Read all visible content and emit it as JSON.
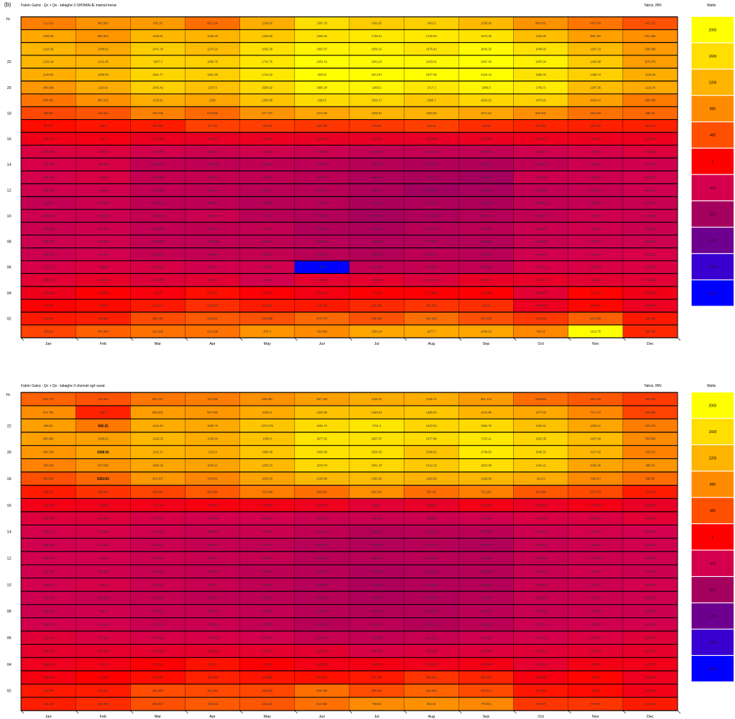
{
  "figure_label": "(b)",
  "months": [
    "Jan",
    "Feb",
    "Mar",
    "Apr",
    "May",
    "Jun",
    "Jul",
    "Aug",
    "Sep",
    "Oct",
    "Nov",
    "Dec"
  ],
  "hour_ticks": [
    "02",
    "04",
    "06",
    "08",
    "10",
    "12",
    "14",
    "16",
    "18",
    "20",
    "22"
  ],
  "legend": {
    "title": "Watts",
    "levels": [
      "2000",
      "1600",
      "1200",
      "800",
      "400",
      "0",
      "-400",
      "-800",
      "-1200",
      "-1600",
      "-2000"
    ],
    "colors": [
      "#ffff00",
      "#ffde00",
      "#ffb400",
      "#ff8c00",
      "#ff5000",
      "#ff0000",
      "#d4004d",
      "#a4005e",
      "#6e0090",
      "#3a00d0",
      "#0000ff"
    ]
  },
  "chart_data": [
    {
      "type": "heatmap",
      "title": "Fabric Gains - Qc + Qs - tabaghe 3 SHOMALIE mamuli kenar",
      "location": "Tabriz, IRN",
      "ylabel": "Hr",
      "xlabel": "",
      "x": [
        "Jan",
        "Feb",
        "Mar",
        "Apr",
        "May",
        "Jun",
        "Jul",
        "Aug",
        "Sep",
        "Oct",
        "Nov",
        "Dec"
      ],
      "y_range": [
        1,
        24
      ],
      "colorbar_label": "Watts",
      "values": [
        [
          335.93,
          504.006,
          622.326,
          622.208,
          870.3,
          792.969,
          1053.24,
          1077.7,
          1048.24,
          766.25,
          2110.76,
          195.868
        ],
        [
          123.666,
          152.626,
          381.726,
          463.211,
          410.608,
          570.776,
          410.462,
          604.263,
          407.333,
          276.302,
          512.005,
          123.666
        ],
        [
          -14.536,
          37.5667,
          123.615,
          230.155,
          128.829,
          118.205,
          201.405,
          260.413,
          230.24,
          -163.586,
          36.5416,
          -163.8503
        ],
        [
          -150.584,
          -16.3061,
          -65.28,
          63.7021,
          -16.8074,
          -96.249,
          -17.003,
          -17.3808,
          -13.5961,
          -260.084,
          17.1513,
          -125.5843
        ],
        [
          -269.146,
          -218.203,
          -303.595,
          -257.87,
          -405.3,
          -240.525,
          -245.563,
          -323.563,
          -195.745,
          -218.023,
          -262.024,
          -273.523
        ],
        [
          -372.23,
          -338.96,
          -362.636,
          -426.04,
          -431.597,
          -4913,
          -557.335,
          -529.326,
          -552.594,
          -372.122,
          -366.219,
          -338.529
        ],
        [
          -463.433,
          -412.205,
          -532.079,
          -536.856,
          -533.108,
          -623.351,
          -666.252,
          -593.304,
          -621.546,
          -429.345,
          -392.624,
          -372.112
        ],
        [
          -462.206,
          -434.405,
          -546.405,
          -572.403,
          -581.304,
          -632.542,
          -676.005,
          -674.036,
          -658.208,
          -505.546,
          -460.323,
          -462.206
        ],
        [
          -479.565,
          -426.264,
          -538.055,
          -547.123,
          -537.133,
          -684.304,
          -713.604,
          -633.706,
          -610.506,
          -468.306,
          -428.321,
          -466.532
        ],
        [
          -456.216,
          -463.025,
          -532.003,
          -486.684,
          -621,
          -672.328,
          -776.374,
          -717.463,
          -650.316,
          -560.023,
          -452.026,
          -465.985
        ],
        [
          -539.1,
          -478.003,
          -580.146,
          -582.025,
          -653.266,
          -636.75,
          -724.025,
          -704.206,
          -713.263,
          -558.005,
          -525.446,
          -503.371
        ],
        [
          -436.605,
          -426.33,
          -539.656,
          -552.204,
          -607.074,
          -627.208,
          -699.61,
          -806.525,
          -745.004,
          -553.305,
          -513.226,
          -453.512
        ],
        [
          -388.461,
          -360.34,
          -523.466,
          -532.381,
          -549.97,
          -606.56,
          -699.05,
          -736.75,
          -790.65,
          -456.108,
          -458.032,
          -409.236
        ],
        [
          -373.208,
          -368.004,
          -556.224,
          -573.559,
          -555.556,
          -590.01,
          -637.603,
          -680.039,
          -684.043,
          -556.004,
          -456.102,
          -424.783
        ],
        [
          -341.298,
          -328.07,
          -411.236,
          -461.311,
          -422.468,
          -468.055,
          -541.306,
          -532.036,
          -538.063,
          -426.505,
          -386.023,
          -312.651
        ],
        [
          -130.206,
          -104.0,
          -177.298,
          -194.004,
          -183.6,
          -190.426,
          -192.69,
          -195.496,
          -180.604,
          -161.064,
          -162.232,
          -167.209
        ],
        [
          55.779,
          106.5,
          136.396,
          317.59,
          309.64,
          268.304,
          275.05,
          316.45,
          226.05,
          181.063,
          160.298,
          162.211
        ],
        [
          366.08,
          432.103,
          726.766,
          578.685,
          877.374,
          1074.06,
          1206.61,
          1183.08,
          1071.64,
          825.204,
          628.028,
          566.45
        ],
        [
          648.091,
          850.015,
          1132.51,
          1052,
          1353.86,
          1562.5,
          1536.17,
          1385.7,
          1526.22,
          1475.01,
          1024.61,
          686.358
        ],
        [
          906.009,
          1116.91,
          1453.42,
          1327.5,
          1556.92,
          1865.34,
          1865.5,
          1717.3,
          1866.6,
          1749.71,
          1287.96,
          1116.06
        ],
        [
          1140.62,
          1268.09,
          1511.77,
          1461.29,
          1712.23,
          2002.8,
          1974.97,
          1977.06,
          2103.44,
          1655.44,
          1458.74,
          1140.62
        ],
        [
          1223.16,
          1221.89,
          1507.3,
          1460.76,
          1714.76,
          1961.41,
          1942.24,
          1933.01,
          2087.46,
          1833.34,
          1420.68,
          976.678
        ],
        [
          1216.46,
          1088.62,
          1447.34,
          1274.16,
          1642.39,
          1853.37,
          1836.22,
          1676.43,
          1935.25,
          1648.03,
          1267.19,
          935.058
        ],
        [
          1080.05,
          894.844,
          1235.61,
          1206.26,
          1403.56,
          1660.02,
          1738.41,
          1732.65,
          1673.29,
          1303.66,
          985.792,
          841.386
        ],
        [
          711.916,
          882.863,
          935.18,
          602.144,
          1136.43,
          1597.33,
          1432.82,
          1462.5,
          1258.09,
          864.651,
          645.978,
          413.231
        ]
      ],
      "note_values_row_order": "bottom (hour 1) to top (hour 24)"
    },
    {
      "type": "heatmap",
      "title": "Fabric Gains - Qc + Qs - tabaghe 3 shomali ogrl vasat",
      "location": "Tabriz, IRN",
      "ylabel": "Hr",
      "xlabel": "",
      "x": [
        "Jan",
        "Feb",
        "Mar",
        "Apr",
        "May",
        "Jun",
        "Jul",
        "Aug",
        "Sep",
        "Oct",
        "Nov",
        "Dec"
      ],
      "y_range": [
        1,
        24
      ],
      "colorbar_label": "Watts",
      "annotations": [
        "668.15",
        "1008.01",
        "1032.63"
      ],
      "values": [
        [
          155.236,
          226.808,
          398.657,
          465.546,
          445.162,
          612.064,
          798.63,
          852.31,
          770.821,
          272.078,
          270.905,
          132.556
        ],
        [
          123.206,
          133.301,
          382.153,
          361.334,
          355.663,
          608.236,
          380.912,
          525.263,
          376.012,
          111.688,
          49.841,
          -119.634
        ],
        [
          -90.163,
          -1.3019,
          67.1132,
          162.362,
          101.685,
          80.3321,
          117.336,
          253.361,
          180.015,
          -82.3036,
          20.154,
          -154.112
        ],
        [
          -158.403,
          -114.51,
          -15.052,
          83.2271,
          -13.612,
          -111.1503,
          -95.603,
          -139.003,
          -111.065,
          -244.213,
          -106.436,
          -123.271
        ],
        [
          -239.213,
          -240.106,
          -243.206,
          -238.505,
          -242.503,
          -256.136,
          -366.313,
          -323.603,
          -317.663,
          -280.413,
          -253.306,
          -224.143
        ],
        [
          -275.061,
          -337.154,
          -376.062,
          -376.433,
          -409.416,
          -505.305,
          -541.306,
          -502.236,
          -441.235,
          -392.231,
          -340.311,
          -297.012
        ],
        [
          -408.524,
          -412.341,
          -491.223,
          -472.863,
          -539.063,
          -624.216,
          -601.461,
          -656.411,
          -600.241,
          -477.617,
          -436.016,
          -406.146
        ],
        [
          -456.626,
          -434.5,
          -500.015,
          -500.506,
          -542.603,
          -617.536,
          -659.402,
          -661.505,
          -604.155,
          -497.236,
          -471.405,
          -468.326
        ],
        [
          -445.636,
          -498.036,
          -519.106,
          -565.061,
          -594.402,
          -640.106,
          -689.302,
          -679.306,
          -637.066,
          -508.006,
          -478.007,
          -453.526
        ],
        [
          -406.28,
          -381.46,
          -463.511,
          -496.51,
          -562.602,
          -644.096,
          -716.06,
          -662.606,
          -656.206,
          -492.032,
          -470.211,
          -408.335
        ],
        [
          -427.236,
          -423.216,
          -502.026,
          -526.055,
          -583.536,
          -629.016,
          -703.335,
          -664.336,
          -653.066,
          -512.024,
          -436.601,
          -471.203
        ],
        [
          -408.011,
          -402.03,
          -468.511,
          -490.221,
          -529.016,
          -630.511,
          -629.002,
          -623.066,
          -637.006,
          -505.205,
          -471.606,
          -453.055
        ],
        [
          -426.066,
          -410.632,
          -468.321,
          -526.105,
          -557.614,
          -623.661,
          -673.665,
          -644.016,
          -681.371,
          -497.321,
          -456.206,
          -428.306
        ],
        [
          -386.112,
          -371.635,
          -435.756,
          -485.222,
          -469.036,
          -551.036,
          -650.021,
          -606.206,
          -606.326,
          -462.045,
          -395.135,
          -400.033
        ],
        [
          -310.345,
          -312.063,
          -376.331,
          -403.065,
          -420.603,
          -464.136,
          -467.201,
          -458.002,
          -423.615,
          -356.405,
          -353.612,
          -273.012
        ],
        [
          -112.356,
          -134.002,
          -117.44,
          -82.063,
          -106.006,
          -152.618,
          -268.17,
          -206.076,
          -113.066,
          -182.063,
          -115.025,
          -195.421
        ],
        [
          136.121,
          256.254,
          339.544,
          469.053,
          701.409,
          609.651,
          826.224,
          597.32,
          711.183,
          452.056,
          370.278,
          133.625
        ],
        [
          402.059,
          562.267,
          913.407,
          760.041,
          1026.83,
          1240.99,
          1262.55,
          1182.99,
          1229.06,
          1114.6,
          786.617,
          588.95
        ],
        [
          736.446,
          870.636,
          1066.19,
          1034.21,
          1253.23,
          1543.79,
          1541.34,
          1412.16,
          1603.09,
          1416.21,
          1052.26,
          885.43
        ],
        [
          904.208,
          1032.63,
          1192.71,
          1133.9,
          1380.49,
          1656.38,
          1635.25,
          1349.61,
          1749.53,
          1545.32,
          1217.82,
          725.371
        ],
        [
          995.856,
          1008.01,
          1228.23,
          1135.04,
          1355.4,
          1677.32,
          1657.07,
          1577.99,
          1725.11,
          1515.35,
          1287.66,
          794.686
        ],
        [
          986.82,
          668.15,
          1132.26,
          1096.76,
          1372.074,
          1582.74,
          1701.2,
          1510.53,
          1565.76,
          1333.61,
          1069.12,
          705.278
        ],
        [
          811.702,
          163.3,
          960.201,
          907.992,
          1109.11,
          1330.55,
          1348.43,
          1380.62,
          1210.89,
          1077.04,
          770.147,
          334.606
        ],
        [
          522.773,
          411.842,
          663.212,
          701.066,
          838.962,
          987.248,
          1108.32,
          1138.72,
          951.143,
          589.664,
          456.745,
          295.534
        ]
      ],
      "note_values_row_order": "bottom (hour 1) to top (hour 24)"
    }
  ]
}
